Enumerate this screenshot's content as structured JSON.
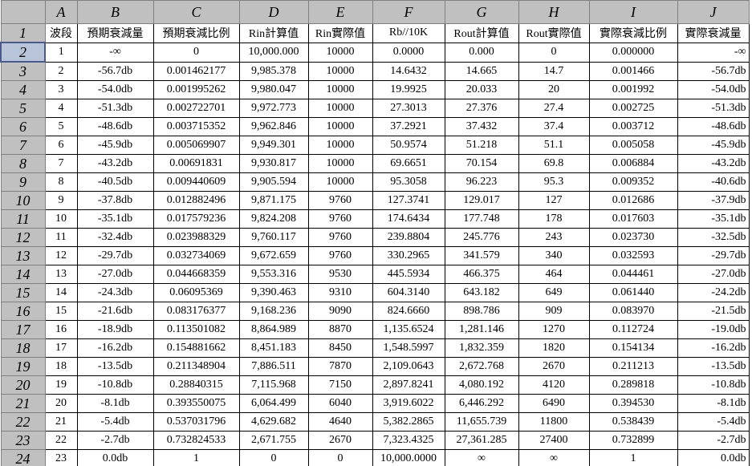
{
  "column_headers": [
    "A",
    "B",
    "C",
    "D",
    "E",
    "F",
    "G",
    "H",
    "I",
    "J"
  ],
  "row_headers": [
    1,
    2,
    3,
    4,
    5,
    6,
    7,
    8,
    9,
    10,
    11,
    12,
    13,
    14,
    15,
    16,
    17,
    18,
    19,
    20,
    21,
    22,
    23,
    24
  ],
  "rows": [
    [
      "波段",
      "預期衰減量",
      "預期衰減比例",
      "Rin計算值",
      "Rin實際值",
      "Rb//10K",
      "Rout計算值",
      "Rout實際值",
      "實際衰減比例",
      "實際衰減量"
    ],
    [
      "1",
      "-∞",
      "0",
      "10,000.000",
      "10000",
      "0.0000",
      "0.000",
      "0",
      "0.000000",
      "-∞"
    ],
    [
      "2",
      "-56.7db",
      "0.001462177",
      "9,985.378",
      "10000",
      "14.6432",
      "14.665",
      "14.7",
      "0.001466",
      "-56.7db"
    ],
    [
      "3",
      "-54.0db",
      "0.001995262",
      "9,980.047",
      "10000",
      "19.9925",
      "20.033",
      "20",
      "0.001992",
      "-54.0db"
    ],
    [
      "4",
      "-51.3db",
      "0.002722701",
      "9,972.773",
      "10000",
      "27.3013",
      "27.376",
      "27.4",
      "0.002725",
      "-51.3db"
    ],
    [
      "5",
      "-48.6db",
      "0.003715352",
      "9,962.846",
      "10000",
      "37.2921",
      "37.432",
      "37.4",
      "0.003712",
      "-48.6db"
    ],
    [
      "6",
      "-45.9db",
      "0.005069907",
      "9,949.301",
      "10000",
      "50.9574",
      "51.218",
      "51.1",
      "0.005058",
      "-45.9db"
    ],
    [
      "7",
      "-43.2db",
      "0.00691831",
      "9,930.817",
      "10000",
      "69.6651",
      "70.154",
      "69.8",
      "0.006884",
      "-43.2db"
    ],
    [
      "8",
      "-40.5db",
      "0.009440609",
      "9,905.594",
      "10000",
      "95.3058",
      "96.223",
      "95.3",
      "0.009352",
      "-40.6db"
    ],
    [
      "9",
      "-37.8db",
      "0.012882496",
      "9,871.175",
      "9760",
      "127.3741",
      "129.017",
      "127",
      "0.012686",
      "-37.9db"
    ],
    [
      "10",
      "-35.1db",
      "0.017579236",
      "9,824.208",
      "9760",
      "174.6434",
      "177.748",
      "178",
      "0.017603",
      "-35.1db"
    ],
    [
      "11",
      "-32.4db",
      "0.023988329",
      "9,760.117",
      "9760",
      "239.8804",
      "245.776",
      "243",
      "0.023730",
      "-32.5db"
    ],
    [
      "12",
      "-29.7db",
      "0.032734069",
      "9,672.659",
      "9760",
      "330.2965",
      "341.579",
      "340",
      "0.032593",
      "-29.7db"
    ],
    [
      "13",
      "-27.0db",
      "0.044668359",
      "9,553.316",
      "9530",
      "445.5934",
      "466.375",
      "464",
      "0.044461",
      "-27.0db"
    ],
    [
      "14",
      "-24.3db",
      "0.06095369",
      "9,390.463",
      "9310",
      "604.3140",
      "643.182",
      "649",
      "0.061440",
      "-24.2db"
    ],
    [
      "15",
      "-21.6db",
      "0.083176377",
      "9,168.236",
      "9090",
      "824.6660",
      "898.786",
      "909",
      "0.083970",
      "-21.5db"
    ],
    [
      "16",
      "-18.9db",
      "0.113501082",
      "8,864.989",
      "8870",
      "1,135.6524",
      "1,281.146",
      "1270",
      "0.112724",
      "-19.0db"
    ],
    [
      "17",
      "-16.2db",
      "0.154881662",
      "8,451.183",
      "8450",
      "1,548.5997",
      "1,832.359",
      "1820",
      "0.154134",
      "-16.2db"
    ],
    [
      "18",
      "-13.5db",
      "0.211348904",
      "7,886.511",
      "7870",
      "2,109.0643",
      "2,672.768",
      "2670",
      "0.211213",
      "-13.5db"
    ],
    [
      "19",
      "-10.8db",
      "0.28840315",
      "7,115.968",
      "7150",
      "2,897.8241",
      "4,080.192",
      "4120",
      "0.289818",
      "-10.8db"
    ],
    [
      "20",
      "-8.1db",
      "0.393550075",
      "6,064.499",
      "6040",
      "3,919.6022",
      "6,446.292",
      "6490",
      "0.394530",
      "-8.1db"
    ],
    [
      "21",
      "-5.4db",
      "0.537031796",
      "4,629.682",
      "4640",
      "5,382.2865",
      "11,655.739",
      "11800",
      "0.538439",
      "-5.4db"
    ],
    [
      "22",
      "-2.7db",
      "0.732824533",
      "2,671.755",
      "2670",
      "7,323.4325",
      "27,361.285",
      "27400",
      "0.732899",
      "-2.7db"
    ],
    [
      "23",
      "0.0db",
      "1",
      "0",
      "0",
      "10,000.0000",
      "∞",
      "∞",
      "1",
      "0.0db"
    ]
  ]
}
